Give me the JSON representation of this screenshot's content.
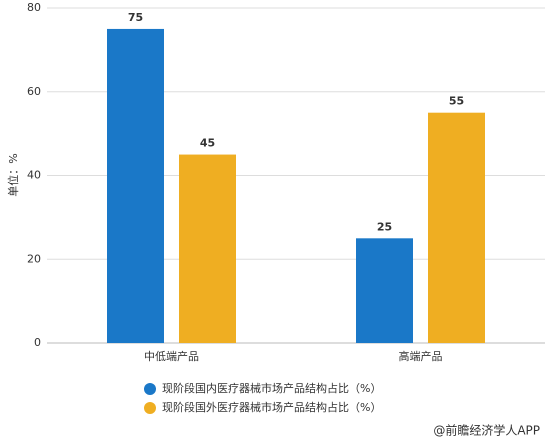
{
  "chart_data": {
    "type": "bar",
    "y_label": "单位：%",
    "categories": [
      "中低端产品",
      "高端产品"
    ],
    "series": [
      {
        "name": "现阶段国内医疗器械市场产品结构占比（%）",
        "color": "#1a78c8",
        "values": [
          75,
          25
        ]
      },
      {
        "name": "现阶段国外医疗器械市场产品结构占比（%）",
        "color": "#efae22",
        "values": [
          45,
          55
        ]
      }
    ],
    "ylim": [
      0,
      80
    ],
    "yticks": [
      0,
      20,
      40,
      60,
      80
    ],
    "grid": true,
    "source": "@前瞻经济学人APP"
  }
}
